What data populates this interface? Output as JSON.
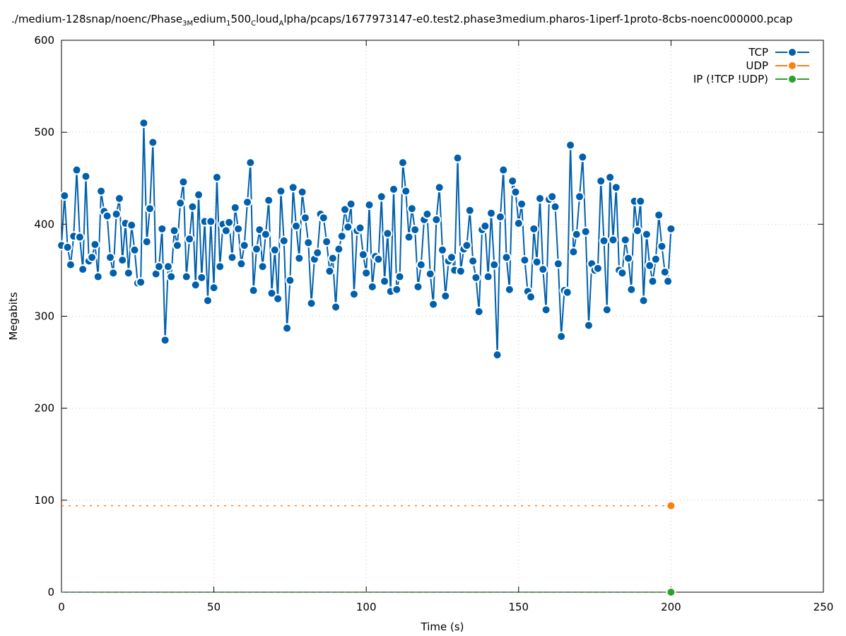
{
  "title_parts": [
    {
      "t": "./medium-128snap/noenc/Phase",
      "sub": false
    },
    {
      "t": "3M",
      "sub": true
    },
    {
      "t": "edium",
      "sub": false
    },
    {
      "t": "1",
      "sub": true
    },
    {
      "t": "500",
      "sub": false
    },
    {
      "t": "C",
      "sub": true
    },
    {
      "t": "loud",
      "sub": false
    },
    {
      "t": "A",
      "sub": true
    },
    {
      "t": "lpha/pcaps/1677973147-e0.test2.phase3medium.pharos-1iperf-1proto-8cbs-noenc000000.pcap",
      "sub": false
    }
  ],
  "chart_data": {
    "type": "line",
    "title": "./medium-128snap/noenc/Phase_3Medium_1500_CCloud_Alpha/pcaps/1677973147-e0.test2.phase3medium.pharos-1iperf-1proto-8cbs-noenc000000.pcap",
    "xlabel": "Time (s)",
    "ylabel": "Megabits",
    "xlim": [
      0,
      250
    ],
    "ylim": [
      0,
      600
    ],
    "xticks": [
      "0",
      "50",
      "100",
      "150",
      "200",
      "250"
    ],
    "yticks": [
      "0",
      "100",
      "200",
      "300",
      "400",
      "500",
      "600"
    ],
    "grid": true,
    "legend_position": "top-right",
    "series": [
      {
        "name": "TCP",
        "color": "#0060ad",
        "x_start": 0,
        "x_step": 1,
        "values": [
          377,
          431,
          375,
          356,
          387,
          459,
          386,
          351,
          452,
          360,
          364,
          378,
          343,
          436,
          414,
          409,
          364,
          347,
          411,
          428,
          361,
          401,
          347,
          399,
          372,
          336,
          337,
          510,
          381,
          417,
          489,
          346,
          354,
          395,
          274,
          354,
          343,
          393,
          377,
          423,
          446,
          343,
          384,
          419,
          334,
          432,
          342,
          403,
          317,
          403,
          331,
          451,
          354,
          400,
          393,
          402,
          364,
          418,
          395,
          357,
          377,
          424,
          467,
          328,
          373,
          394,
          354,
          389,
          426,
          325,
          372,
          319,
          436,
          382,
          287,
          339,
          440,
          398,
          363,
          435,
          407,
          380,
          314,
          362,
          369,
          411,
          407,
          381,
          349,
          363,
          310,
          373,
          387,
          416,
          397,
          422,
          324,
          393,
          396,
          367,
          347,
          421,
          332,
          365,
          362,
          430,
          338,
          390,
          327,
          438,
          329,
          343,
          467,
          436,
          386,
          417,
          394,
          332,
          356,
          405,
          411,
          346,
          313,
          405,
          440,
          372,
          322,
          360,
          364,
          350,
          472,
          349,
          373,
          377,
          415,
          360,
          342,
          305,
          394,
          398,
          343,
          412,
          356,
          258,
          408,
          459,
          364,
          329,
          447,
          435,
          401,
          422,
          361,
          327,
          321,
          395,
          359,
          428,
          351,
          307,
          427,
          430,
          419,
          357,
          278,
          328,
          326,
          486,
          370,
          389,
          430,
          473,
          392,
          290,
          357,
          350,
          352,
          447,
          382,
          307,
          451,
          383,
          440,
          350,
          347,
          383,
          363,
          329,
          425,
          393,
          425,
          317,
          389,
          355,
          338,
          362,
          410,
          376,
          348,
          338,
          395
        ]
      },
      {
        "name": "UDP",
        "color": "#ff7f0e",
        "x_start": 0,
        "x_step": 1,
        "constant": 94,
        "x_end": 200
      },
      {
        "name": "IP (!TCP  !UDP)",
        "color": "#2ca02c",
        "x_start": 0,
        "x_step": 1,
        "constant": 0,
        "x_end": 200
      }
    ]
  }
}
